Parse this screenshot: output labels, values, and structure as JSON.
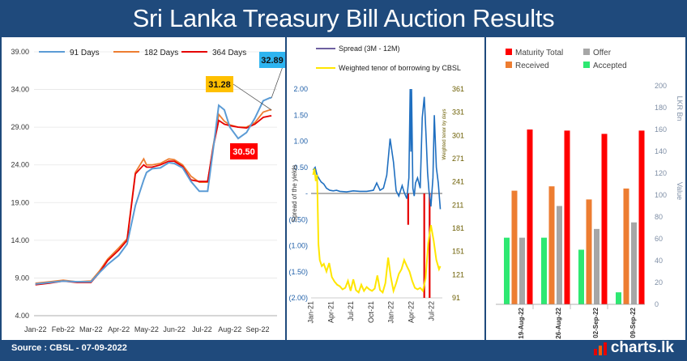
{
  "title": "Sri Lanka Treasury Bill Auction Results",
  "footer": {
    "source": "Source : CBSL - 07-09-2022",
    "brand": "charts.lk"
  },
  "colors": {
    "frame": "#1f4a7c",
    "d91": "#5b9bd5",
    "d182": "#ed7d31",
    "d364": "#e60000",
    "spread": "#1f6fc0",
    "tenor": "#ffe600",
    "maturity": "#ff0000",
    "received": "#ed7d31",
    "offer": "#a6a6a6",
    "accepted": "#2ee872",
    "label91": "#2eb4f0",
    "label182": "#ffc000",
    "label364": "#ff0000"
  },
  "chart_data": [
    {
      "type": "line",
      "title": "",
      "xlabel": "",
      "ylabel": "",
      "ylim": [
        4,
        39
      ],
      "yticks": [
        4,
        9,
        14,
        19,
        24,
        29,
        34,
        39
      ],
      "ytick_labels": [
        "4.00",
        "9.00",
        "14.00",
        "19.00",
        "24.00",
        "29.00",
        "34.00",
        "39.00"
      ],
      "x": [
        0,
        0.5,
        1,
        1.5,
        2,
        2.3,
        2.6,
        3,
        3.3,
        3.6,
        3.9,
        4,
        4.2,
        4.5,
        4.8,
        5,
        5.3,
        5.6,
        5.9,
        6.2,
        6.4,
        6.6,
        6.8,
        7,
        7.3,
        7.6,
        7.9,
        8.2,
        8.45,
        8.5
      ],
      "xticks": [
        0,
        1,
        2,
        3,
        4,
        5,
        6,
        7,
        8
      ],
      "xtick_labels": [
        "Jan-22",
        "Feb-22",
        "Mar-22",
        "Apr-22",
        "May-22",
        "Jun-22",
        "Jul-22",
        "Aug-22",
        "Sep-22"
      ],
      "series": [
        {
          "name": "91 Days",
          "values": [
            8.2,
            8.4,
            8.6,
            8.5,
            8.5,
            9.7,
            10.8,
            12.0,
            13.5,
            18.6,
            22.0,
            23.0,
            23.5,
            23.6,
            24.3,
            24.2,
            23.6,
            21.8,
            20.5,
            20.5,
            26.0,
            31.9,
            31.3,
            29.0,
            27.5,
            28.3,
            30.2,
            32.5,
            32.9,
            32.89
          ]
        },
        {
          "name": "182 Days",
          "values": [
            8.3,
            8.5,
            8.7,
            8.5,
            8.6,
            9.9,
            11.5,
            13.0,
            14.2,
            23.0,
            24.8,
            24.0,
            24.0,
            24.2,
            24.8,
            24.7,
            24.0,
            22.5,
            21.7,
            21.7,
            26.5,
            30.7,
            29.8,
            29.3,
            29.0,
            29.0,
            29.6,
            31.0,
            31.3,
            31.28
          ]
        },
        {
          "name": "364 Days",
          "values": [
            8.1,
            8.3,
            8.6,
            8.4,
            8.4,
            9.7,
            11.3,
            12.7,
            14.0,
            22.8,
            24.0,
            23.7,
            23.7,
            24.0,
            24.5,
            24.5,
            23.8,
            22.0,
            21.8,
            21.8,
            26.3,
            29.9,
            29.4,
            29.2,
            29.0,
            28.9,
            29.4,
            30.3,
            30.5,
            30.5
          ]
        }
      ],
      "annotations": [
        {
          "series": "91 Days",
          "text": "32.89"
        },
        {
          "series": "182 Days",
          "text": "31.28"
        },
        {
          "series": "364 Days",
          "text": "30.50"
        }
      ]
    },
    {
      "type": "line",
      "title": "",
      "ylabel": "Spread of the yields",
      "y2label": "Weighted tenor by days",
      "ylim": [
        -2.0,
        2.0
      ],
      "yticks": [
        -2.0,
        -1.5,
        -1.0,
        -0.5,
        0,
        0.5,
        1.0,
        1.5,
        2.0
      ],
      "ytick_labels": [
        "(2.00)",
        "(1.50)",
        "(1.00)",
        "(0.50)",
        "-",
        "0.50",
        "1.00",
        "1.50",
        "2.00"
      ],
      "y2lim": [
        91,
        361
      ],
      "y2ticks": [
        91,
        121,
        151,
        181,
        211,
        241,
        271,
        301,
        331,
        361
      ],
      "xticks": [
        0,
        3,
        6,
        9,
        12,
        15,
        18
      ],
      "xtick_labels": [
        "Jan-21",
        "Apr-21",
        "Jul-21",
        "Oct-21",
        "Jan-22",
        "Apr-22",
        "Jul-22"
      ],
      "series": [
        {
          "name": "Spread (3M - 12M)",
          "axis": "left",
          "x": [
            0,
            0.3,
            0.6,
            0.9,
            1.2,
            1.6,
            2,
            2.5,
            3,
            3.5,
            4,
            5,
            6,
            7,
            8,
            9,
            9.5,
            10,
            10.5,
            11,
            11.5,
            12,
            12.4,
            12.8,
            13.3,
            13.6,
            14,
            14.3,
            14.5,
            14.6,
            14.7,
            14.9,
            15.1,
            15.3,
            15.6,
            16,
            16.3,
            16.6,
            16.9,
            17.1,
            17.3,
            17.6,
            17.9,
            18.1,
            18.4,
            18.7,
            19.0
          ],
          "values": [
            0.45,
            0.5,
            0.35,
            0.28,
            0.22,
            0.18,
            0.1,
            0.06,
            0.05,
            0.06,
            0.04,
            0.03,
            0.05,
            0.04,
            0.04,
            0.06,
            0.2,
            0.06,
            0.1,
            0.35,
            1.05,
            0.6,
            0.05,
            -0.05,
            0.15,
            0.02,
            -0.1,
            0.3,
            2.0,
            0.8,
            2.0,
            0.1,
            -0.05,
            0.2,
            0.3,
            0.1,
            1.45,
            1.85,
            1.0,
            0.4,
            0.05,
            -0.25,
            0.3,
            1.5,
            0.5,
            0.2,
            -0.3
          ]
        },
        {
          "name": "Weighted tenor of borrowing by CBSL",
          "axis": "right",
          "x": [
            0,
            0.2,
            0.4,
            0.6,
            0.8,
            1.0,
            1.3,
            1.6,
            2.0,
            2.4,
            2.8,
            3.2,
            3.6,
            4.0,
            4.4,
            4.8,
            5.2,
            5.6,
            6.0,
            6.4,
            6.8,
            7.2,
            7.6,
            8.0,
            8.4,
            8.8,
            9.2,
            9.6,
            10.0,
            10.4,
            10.8,
            11.2,
            11.6,
            12.0,
            12.4,
            12.8,
            13.2,
            13.6,
            14.0,
            14.4,
            14.8,
            15.2,
            15.6,
            16.0,
            16.4,
            16.8,
            17.2,
            17.6,
            18.0,
            18.4,
            18.8,
            19.0
          ],
          "values": [
            250,
            258,
            242,
            250,
            160,
            140,
            132,
            135,
            125,
            136,
            118,
            112,
            108,
            106,
            102,
            104,
            113,
            100,
            115,
            101,
            98,
            108,
            100,
            105,
            102,
            100,
            103,
            120,
            101,
            98,
            110,
            143,
            118,
            100,
            110,
            122,
            128,
            140,
            132,
            125,
            113,
            104,
            102,
            104,
            100,
            116,
            162,
            185,
            165,
            140,
            128,
            132
          ]
        }
      ],
      "annotations": [
        {
          "text": "red spikes of spread near Apr-22 and Jul-22",
          "visible": false
        }
      ]
    },
    {
      "type": "bar",
      "title": "",
      "ylabel": "LKR Bn",
      "y2label": "Value",
      "ylim": [
        0,
        200
      ],
      "yticks": [
        0,
        20,
        40,
        60,
        80,
        100,
        120,
        140,
        160,
        180,
        200
      ],
      "ytick_labels": [
        "0",
        "20",
        "40",
        "60",
        "80",
        "100",
        "120",
        "140",
        "160",
        "180",
        "200"
      ],
      "categories": [
        "19-Aug-22",
        "26-Aug-22",
        "02-Sep-22",
        "09-Sep-22"
      ],
      "series": [
        {
          "name": "Accepted",
          "values": [
            61,
            61,
            50,
            11
          ]
        },
        {
          "name": "Received",
          "values": [
            104,
            108,
            96,
            106
          ]
        },
        {
          "name": "Offer",
          "values": [
            61,
            90,
            69,
            75
          ]
        },
        {
          "name": "Maturity Total",
          "values": [
            160,
            159,
            156,
            159
          ]
        }
      ],
      "legend": [
        "Maturity Total",
        "Offer",
        "Received",
        "Accepted"
      ]
    }
  ]
}
